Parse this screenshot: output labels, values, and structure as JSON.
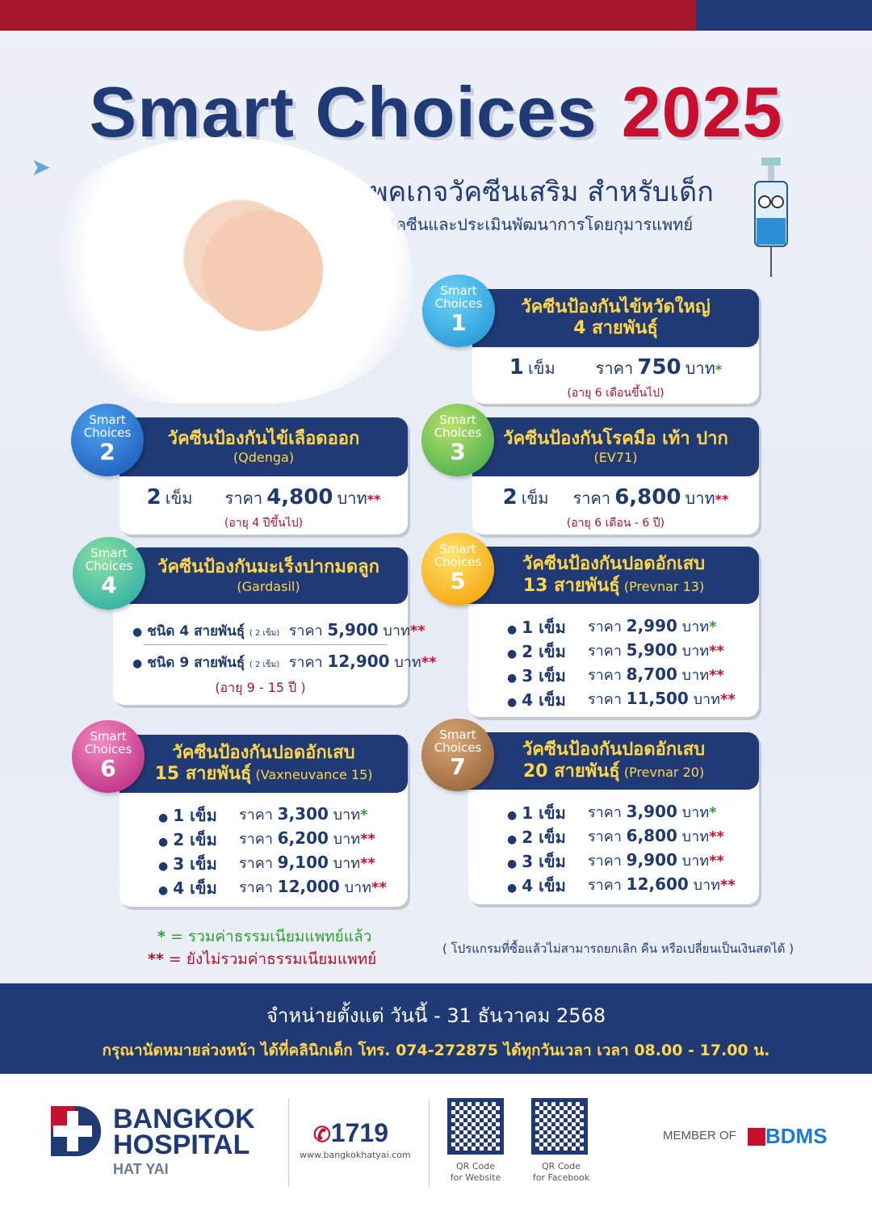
{
  "header": {
    "title_main": "Smart Choices",
    "title_year": "2025",
    "subtitle": "แพคเกจวัคซีนเสริม สำหรับเด็ก",
    "subtitle2": "ฉีดวัคซีนและประเมินพัฒนาการโดยกุมารแพทย์"
  },
  "labels": {
    "badge_line1": "Smart",
    "badge_line2": "Choices",
    "price": "ราคา",
    "baht": "บาท"
  },
  "cards": [
    {
      "number": "1",
      "title": "วัคซีนป้องกันไข้หวัดใหญ่",
      "subtitle": "4 สายพันธุ์",
      "doses": "1",
      "dose_unit": "เข็ม",
      "price": "750",
      "mark": "*",
      "age": "(อายุ 6 เดือนขึ้นไป)",
      "color": "#23a3df"
    },
    {
      "number": "2",
      "title": "วัคซีนป้องกันไข้เลือดออก",
      "subtitle": "(Qdenga)",
      "doses": "2",
      "dose_unit": "เข็ม",
      "price": "4,800",
      "mark": "**",
      "age": "(อายุ 4 ปีขึ้นไป)",
      "color": "#1f6fd0"
    },
    {
      "number": "3",
      "title": "วัคซีนป้องกันโรคมือ เท้า ปาก",
      "subtitle": "(EV71)",
      "doses": "2",
      "dose_unit": "เข็ม",
      "price": "6,800",
      "mark": "**",
      "age": "(อายุ 6 เดือน - 6 ปี)",
      "color": "#7cc242"
    },
    {
      "number": "4",
      "title": "วัคซีนป้องกันมะเร็งปากมดลูก",
      "subtitle": "(Gardasil)",
      "options": [
        {
          "type": "ชนิด 4 สายพันธุ์",
          "doses": "( 2 เข็ม)",
          "price": "5,900",
          "mark": "**"
        },
        {
          "type": "ชนิด 9 สายพันธุ์",
          "doses": "( 2 เข็ม)",
          "price": "12,900",
          "mark": "**"
        }
      ],
      "age": "(อายุ 9 - 15 ปี )",
      "color": "#3bb89a"
    },
    {
      "number": "5",
      "title": "วัคซีนป้องกันปอดอักเสบ",
      "subtitle": "13 สายพันธุ์",
      "brand": "(Prevnar 13)",
      "rows": [
        {
          "dose": "1 เข็ม",
          "price": "2,990",
          "mark": "*"
        },
        {
          "dose": "2 เข็ม",
          "price": "5,900",
          "mark": "**"
        },
        {
          "dose": "3 เข็ม",
          "price": "8,700",
          "mark": "**"
        },
        {
          "dose": "4 เข็ม",
          "price": "11,500",
          "mark": "**"
        }
      ],
      "color": "#f7b500"
    },
    {
      "number": "6",
      "title": "วัคซีนป้องกันปอดอักเสบ",
      "subtitle": "15 สายพันธุ์",
      "brand": "(Vaxneuvance 15)",
      "rows": [
        {
          "dose": "1 เข็ม",
          "price": "3,300",
          "mark": "*"
        },
        {
          "dose": "2 เข็ม",
          "price": "6,200",
          "mark": "**"
        },
        {
          "dose": "3 เข็ม",
          "price": "9,100",
          "mark": "**"
        },
        {
          "dose": "4 เข็ม",
          "price": "12,000",
          "mark": "**"
        }
      ],
      "color": "#d6338a"
    },
    {
      "number": "7",
      "title": "วัคซีนป้องกันปอดอักเสบ",
      "subtitle": "20 สายพันธุ์",
      "brand": "(Prevnar 20)",
      "rows": [
        {
          "dose": "1 เข็ม",
          "price": "3,900",
          "mark": "*"
        },
        {
          "dose": "2 เข็ม",
          "price": "6,800",
          "mark": "**"
        },
        {
          "dose": "3 เข็ม",
          "price": "9,900",
          "mark": "**"
        },
        {
          "dose": "4 เข็ม",
          "price": "12,600",
          "mark": "**"
        }
      ],
      "color": "#a9774a"
    }
  ],
  "notes": {
    "single_mark": "*",
    "single": "= รวมค่าธรรมเนียมแพทย์แล้ว",
    "double_mark": "**",
    "double": "= ยังไม่รวมค่าธรรมเนียมแพทย์",
    "disclaimer": "( โปรแกรมที่ซื้อแล้วไม่สามารถยกเลิก คืน หรือเปลี่ยนเป็นเงินสดได้ )"
  },
  "band": {
    "line1": "จำหน่ายตั้งแต่ วันนี้ - 31 ธันวาคม 2568",
    "line2": "กรุณานัดหมายล่วงหน้า ได้ที่คลินิกเด็ก โทร. 074-272875  ได้ทุกวันเวลา เวลา 08.00 - 17.00 น."
  },
  "footer": {
    "brand_line1": "BANGKOK",
    "brand_line2": "HOSPITAL",
    "brand_line3": "HAT YAI",
    "phone": "1719",
    "website": "www.bangkokhatyai.com",
    "qr1_line1": "QR Code",
    "qr1_line2": "for Website",
    "qr2_line1": "QR Code",
    "qr2_line2": "for Facebook",
    "member": "MEMBER OF",
    "member_logo": "BDMS"
  }
}
